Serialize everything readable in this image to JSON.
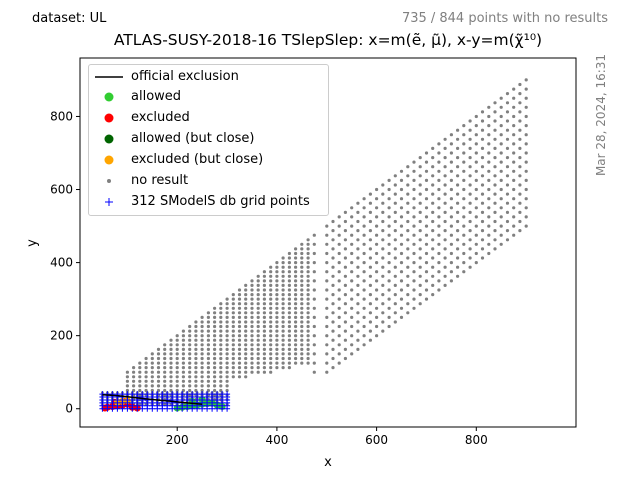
{
  "header": {
    "dataset": "dataset: UL",
    "points_summary": "735 / 844 points with no results",
    "title": "ATLAS-SUSY-2018-16 TSlepSlep: x=m(ẽ, μ̃), x-y=m(χ̃¹⁰)",
    "timestamp": "Mar 28, 2024, 16:31"
  },
  "chart_data": {
    "type": "scatter",
    "title": "ATLAS-SUSY-2018-16 TSlepSlep: x=m(ẽ, μ̃), x-y=m(χ̃¹⁰)",
    "xlabel": "x",
    "ylabel": "y",
    "xlim": [
      5,
      1000
    ],
    "ylim": [
      -50,
      960
    ],
    "xticks": [
      200,
      400,
      600,
      800
    ],
    "yticks": [
      0,
      200,
      400,
      600,
      800
    ],
    "grid": false,
    "legend_position": "upper-left",
    "legend": [
      {
        "label": "official exclusion",
        "marker": "line",
        "color": "#000000"
      },
      {
        "label": "allowed",
        "marker": "circle",
        "color": "#32cd32"
      },
      {
        "label": "excluded",
        "marker": "circle",
        "color": "#ff0000"
      },
      {
        "label": "allowed (but close)",
        "marker": "circle",
        "color": "#006400"
      },
      {
        "label": "excluded (but close)",
        "marker": "circle",
        "color": "#ffa500"
      },
      {
        "label": "no result",
        "marker": "dot",
        "color": "#808080"
      },
      {
        "label": "312 SModelS db grid points",
        "marker": "plus",
        "color": "#0000ff"
      }
    ],
    "official_exclusion": {
      "color": "#000000",
      "x": [
        50,
        80,
        100,
        130,
        160,
        190,
        220,
        250
      ],
      "y": [
        38,
        36,
        33,
        28,
        24,
        20,
        16,
        12
      ]
    },
    "no_result_region": {
      "color": "#808080",
      "x_step": 12.5,
      "x_from": 50,
      "x_to": 900,
      "y_min_below_x": 0,
      "y_max_fraction_of_x": 1.0,
      "gap_x_bands": [
        [
          480,
          500
        ]
      ],
      "notes": "grey dots fill the triangle from x≈100 to x≈900, y up to ≈x"
    },
    "allowed_points": {
      "color": "#32cd32",
      "x": [
        200,
        210,
        220,
        230,
        240,
        250,
        260,
        270,
        280,
        290,
        230,
        250,
        270
      ],
      "y": [
        2,
        4,
        6,
        8,
        10,
        12,
        14,
        16,
        10,
        6,
        20,
        25,
        15
      ]
    },
    "excluded_points": {
      "color": "#ff0000",
      "x": [
        55,
        60,
        70,
        80,
        90,
        100,
        110,
        120,
        75,
        95
      ],
      "y": [
        2,
        4,
        6,
        8,
        10,
        12,
        4,
        2,
        18,
        20
      ]
    },
    "excluded_close_points": {
      "color": "#ffa500",
      "x": [
        80,
        90,
        100
      ],
      "y": [
        18,
        20,
        22
      ]
    },
    "db_grid_points": {
      "color": "#0000ff",
      "x_from": 50,
      "x_to": 300,
      "y_from": 0,
      "y_to": 40
    }
  }
}
